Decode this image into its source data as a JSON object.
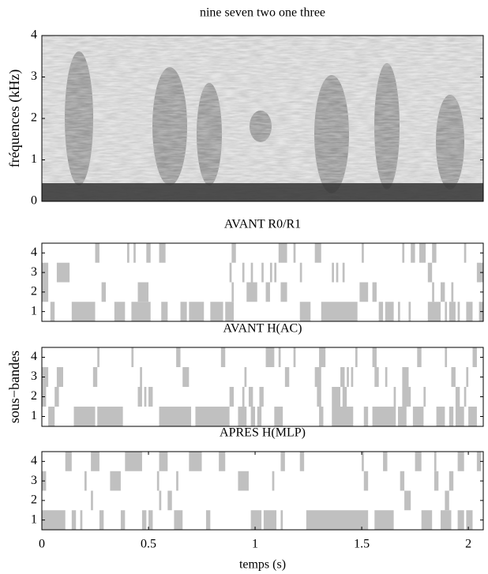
{
  "chart_data": [
    {
      "type": "heatmap",
      "title": "nine seven two one three",
      "ylabel": "fréquences (kHz)",
      "xlim": [
        0,
        2.07
      ],
      "ylim": [
        0,
        4
      ],
      "yticks": [
        0,
        1,
        2,
        3,
        4
      ]
    },
    {
      "type": "segments",
      "title": "AVANT R0/R1",
      "color": "#c0c0c0",
      "xlim": [
        0,
        2.07
      ],
      "ylim": [
        0.5,
        4.5
      ],
      "yticks": [
        1,
        2,
        3,
        4
      ],
      "segments": [
        [
          [
            0.04,
            0.06
          ],
          [
            0.14,
            0.25
          ],
          [
            0.34,
            0.39
          ],
          [
            0.42,
            0.51
          ],
          [
            0.56,
            0.59
          ],
          [
            0.65,
            0.68
          ],
          [
            0.69,
            0.76
          ],
          [
            0.79,
            0.85
          ],
          [
            0.86,
            0.9
          ],
          [
            1.21,
            1.26
          ],
          [
            1.31,
            1.48
          ],
          [
            1.58,
            1.6
          ],
          [
            1.61,
            1.65
          ],
          [
            1.67,
            1.68
          ],
          [
            1.72,
            1.73
          ],
          [
            1.81,
            1.87
          ],
          [
            1.89,
            1.9
          ],
          [
            1.91,
            1.94
          ],
          [
            1.95,
            1.96
          ],
          [
            1.99,
            2.02
          ],
          [
            2.05,
            2.07
          ]
        ],
        [
          [
            0,
            0.03
          ],
          [
            0.28,
            0.3
          ],
          [
            0.45,
            0.5
          ],
          [
            0.89,
            0.9
          ],
          [
            0.96,
            1.01
          ],
          [
            1.05,
            1.07
          ],
          [
            1.12,
            1.15
          ],
          [
            1.49,
            1.53
          ],
          [
            1.55,
            1.57
          ],
          [
            1.83,
            1.84
          ],
          [
            1.87,
            1.89
          ],
          [
            1.92,
            1.93
          ]
        ],
        [
          [
            0,
            0.03
          ],
          [
            0.07,
            0.13
          ],
          [
            0.88,
            0.89
          ],
          [
            0.94,
            0.95
          ],
          [
            0.98,
            0.99
          ],
          [
            1.03,
            1.04
          ],
          [
            1.07,
            1.08
          ],
          [
            1.09,
            1.1
          ],
          [
            1.21,
            1.22
          ],
          [
            1.36,
            1.37
          ],
          [
            1.38,
            1.39
          ],
          [
            1.41,
            1.42
          ],
          [
            1.81,
            1.83
          ],
          [
            2.04,
            2.07
          ]
        ],
        [
          [
            0.25,
            0.27
          ],
          [
            0.4,
            0.41
          ],
          [
            0.43,
            0.44
          ],
          [
            0.49,
            0.51
          ],
          [
            0.55,
            0.58
          ],
          [
            0.89,
            0.91
          ],
          [
            1.11,
            1.15
          ],
          [
            1.18,
            1.19
          ],
          [
            1.28,
            1.31
          ],
          [
            1.5,
            1.51
          ],
          [
            1.69,
            1.7
          ],
          [
            1.73,
            1.75
          ],
          [
            1.77,
            1.8
          ],
          [
            1.83,
            1.85
          ],
          [
            1.98,
            1.99
          ]
        ]
      ]
    },
    {
      "type": "segments",
      "title": "AVANT H(AC)",
      "ylabel": "sous−bandes",
      "color": "#c0c0c0",
      "xlim": [
        0,
        2.07
      ],
      "ylim": [
        0.5,
        4.5
      ],
      "yticks": [
        1,
        2,
        3,
        4
      ],
      "segments": [
        [
          [
            0.03,
            0.06
          ],
          [
            0.15,
            0.25
          ],
          [
            0.26,
            0.38
          ],
          [
            0.55,
            0.7
          ],
          [
            0.72,
            0.88
          ],
          [
            0.92,
            0.96
          ],
          [
            0.98,
            1.0
          ],
          [
            1.01,
            1.03
          ],
          [
            1.09,
            1.13
          ],
          [
            1.3,
            1.32
          ],
          [
            1.36,
            1.46
          ],
          [
            1.51,
            1.53
          ],
          [
            1.55,
            1.66
          ],
          [
            1.67,
            1.71
          ],
          [
            1.74,
            1.79
          ],
          [
            1.85,
            1.89
          ],
          [
            1.91,
            1.93
          ],
          [
            1.94,
            1.98
          ],
          [
            2.0,
            2.04
          ]
        ],
        [
          [
            0,
            0.02
          ],
          [
            0.06,
            0.08
          ],
          [
            0.45,
            0.47
          ],
          [
            0.48,
            0.49
          ],
          [
            0.5,
            0.52
          ],
          [
            0.88,
            0.9
          ],
          [
            0.94,
            0.95
          ],
          [
            0.97,
            0.99
          ],
          [
            1.02,
            1.04
          ],
          [
            1.29,
            1.31
          ],
          [
            1.36,
            1.4
          ],
          [
            1.41,
            1.43
          ],
          [
            1.65,
            1.66
          ],
          [
            1.69,
            1.73
          ],
          [
            1.79,
            1.8
          ],
          [
            1.94,
            1.96
          ],
          [
            1.98,
            1.99
          ]
        ],
        [
          [
            0,
            0.03
          ],
          [
            0.07,
            0.1
          ],
          [
            0.24,
            0.26
          ],
          [
            0.46,
            0.47
          ],
          [
            0.66,
            0.69
          ],
          [
            0.95,
            0.96
          ],
          [
            1.14,
            1.16
          ],
          [
            1.28,
            1.31
          ],
          [
            1.4,
            1.42
          ],
          [
            1.43,
            1.44
          ],
          [
            1.45,
            1.46
          ],
          [
            1.56,
            1.58
          ],
          [
            1.61,
            1.62
          ],
          [
            1.69,
            1.72
          ],
          [
            1.92,
            1.94
          ],
          [
            1.99,
            2.0
          ]
        ],
        [
          [
            0.26,
            0.27
          ],
          [
            0.42,
            0.43
          ],
          [
            0.63,
            0.65
          ],
          [
            0.84,
            0.86
          ],
          [
            1.05,
            1.09
          ],
          [
            1.11,
            1.12
          ],
          [
            1.18,
            1.19
          ],
          [
            1.3,
            1.33
          ],
          [
            1.47,
            1.48
          ],
          [
            1.55,
            1.57
          ],
          [
            1.76,
            1.78
          ],
          [
            1.89,
            1.9
          ],
          [
            2.02,
            2.04
          ]
        ]
      ]
    },
    {
      "type": "segments",
      "title": "APRES H(MLP)",
      "xlabel": "temps (s)",
      "color": "#c0c0c0",
      "xlim": [
        0,
        2.07
      ],
      "ylim": [
        0.5,
        4.5
      ],
      "yticks": [
        1,
        2,
        3,
        4
      ],
      "xticks": [
        0,
        0.5,
        1,
        1.5,
        2
      ],
      "segments": [
        [
          [
            0,
            0.11
          ],
          [
            0.14,
            0.16
          ],
          [
            0.18,
            0.19
          ],
          [
            0.27,
            0.29
          ],
          [
            0.37,
            0.39
          ],
          [
            0.47,
            0.49
          ],
          [
            0.5,
            0.52
          ],
          [
            0.62,
            0.66
          ],
          [
            0.77,
            0.79
          ],
          [
            0.98,
            1.03
          ],
          [
            1.04,
            1.1
          ],
          [
            1.12,
            1.13
          ],
          [
            1.24,
            1.53
          ],
          [
            1.56,
            1.65
          ],
          [
            1.78,
            1.83
          ],
          [
            1.87,
            1.92
          ],
          [
            1.95,
            1.98
          ],
          [
            1.99,
            2.02
          ]
        ],
        [
          [
            0.23,
            0.24
          ],
          [
            0.55,
            0.56
          ],
          [
            0.59,
            0.61
          ],
          [
            1.7,
            1.73
          ],
          [
            1.89,
            1.91
          ]
        ],
        [
          [
            0,
            0.02
          ],
          [
            0.2,
            0.21
          ],
          [
            0.32,
            0.37
          ],
          [
            0.54,
            0.55
          ],
          [
            0.63,
            0.64
          ],
          [
            0.92,
            0.97
          ],
          [
            1.08,
            1.09
          ],
          [
            1.51,
            1.53
          ],
          [
            1.68,
            1.7
          ],
          [
            1.84,
            1.86
          ],
          [
            1.91,
            1.93
          ]
        ],
        [
          [
            0.11,
            0.14
          ],
          [
            0.23,
            0.27
          ],
          [
            0.39,
            0.47
          ],
          [
            0.55,
            0.59
          ],
          [
            0.69,
            0.75
          ],
          [
            0.83,
            0.86
          ],
          [
            1.12,
            1.14
          ],
          [
            1.21,
            1.23
          ],
          [
            1.5,
            1.51
          ],
          [
            1.6,
            1.62
          ],
          [
            1.75,
            1.78
          ],
          [
            1.84,
            1.85
          ],
          [
            1.95,
            1.98
          ],
          [
            2.04,
            2.06
          ]
        ]
      ]
    }
  ]
}
